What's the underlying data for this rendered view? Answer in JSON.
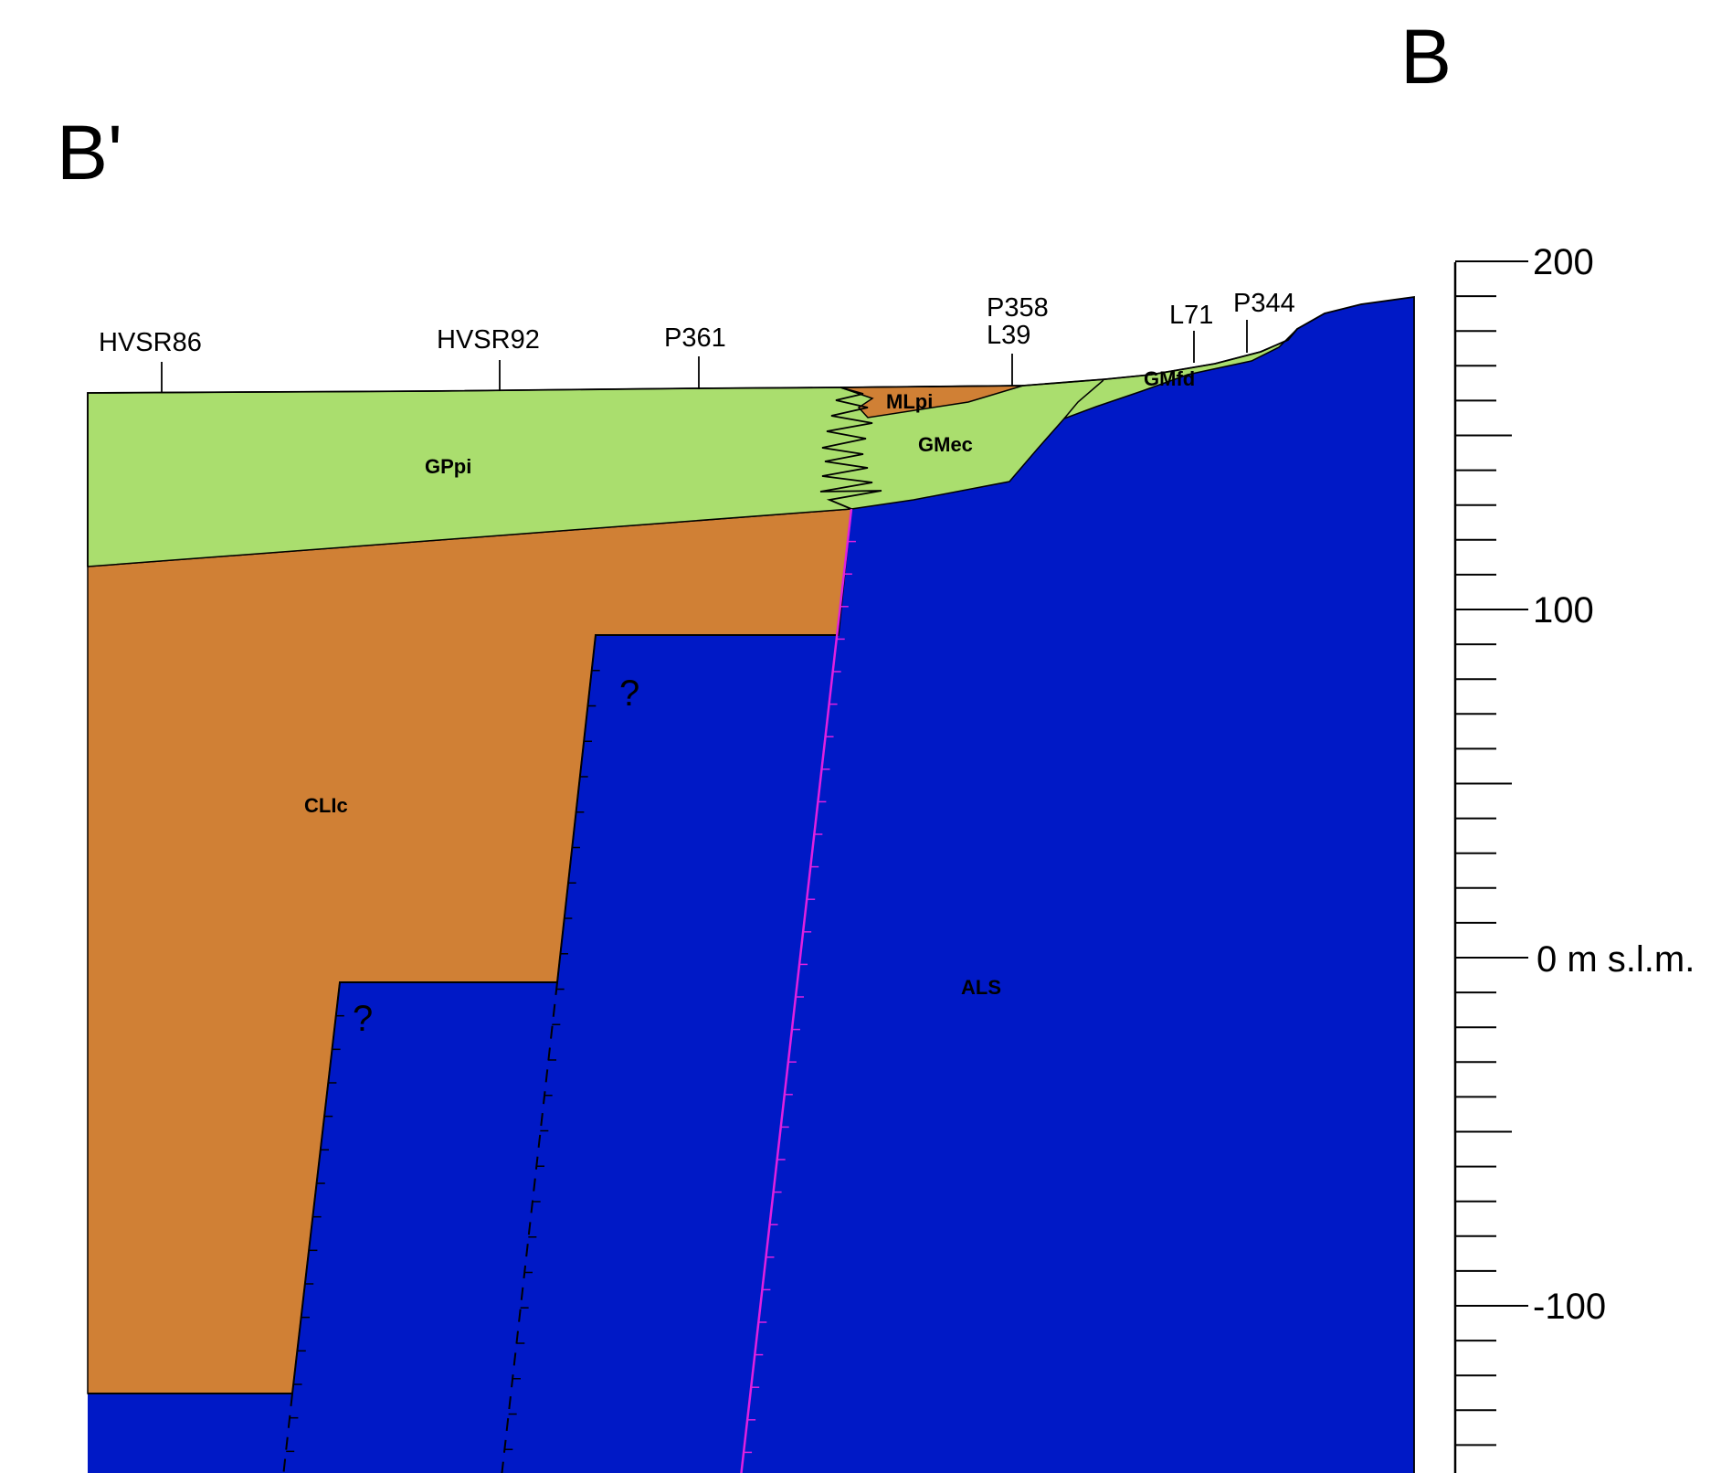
{
  "section": {
    "left_end": "B'",
    "right_end": "B"
  },
  "wells": [
    {
      "name": "HVSR86"
    },
    {
      "name": "HVSR92"
    },
    {
      "name": "P361"
    },
    {
      "name": "P358",
      "name2": "L39"
    },
    {
      "name": "L71"
    },
    {
      "name": "P344"
    }
  ],
  "units": {
    "GPpi": "GPpi",
    "MLpi": "MLpi",
    "GMec": "GMec",
    "GMfd": "GMfd",
    "CLIc": "CLIc",
    "ALS": "ALS"
  },
  "question_marks": [
    "?",
    "?"
  ],
  "scale": {
    "labels": [
      "200",
      "100",
      "0 m s.l.m.",
      "-100"
    ],
    "range_m": [
      -150,
      200
    ],
    "minor_step_m": 10
  },
  "colors": {
    "green": "#aade6e",
    "orange": "#d08035",
    "blue": "#0019c6",
    "fault_magenta": "#e020e0",
    "line": "#000000"
  }
}
